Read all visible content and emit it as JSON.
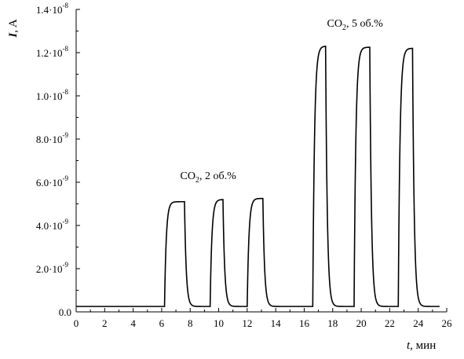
{
  "chart_data": {
    "type": "line",
    "ylabel": {
      "var": "I",
      "unit": ", A"
    },
    "xlabel": {
      "var": "t",
      "unit": ", мин"
    },
    "xlim": [
      0,
      26
    ],
    "ylim": [
      0,
      1.4e-08
    ],
    "x_ticks": [
      0,
      2,
      4,
      6,
      8,
      10,
      12,
      14,
      16,
      18,
      20,
      22,
      24,
      26
    ],
    "x_tick_labels": [
      "0",
      "2",
      "4",
      "6",
      "8",
      "10",
      "12",
      "14",
      "16",
      "18",
      "20",
      "22",
      "24",
      "26"
    ],
    "y_ticks": [
      {
        "value": 0,
        "mantissa": "0.0",
        "exp": ""
      },
      {
        "value": 2e-09,
        "mantissa": "2.0·10",
        "exp": "-9"
      },
      {
        "value": 4e-09,
        "mantissa": "4.0·10",
        "exp": "-9"
      },
      {
        "value": 6e-09,
        "mantissa": "6.0·10",
        "exp": "-9"
      },
      {
        "value": 8e-09,
        "mantissa": "8.0·10",
        "exp": "-9"
      },
      {
        "value": 1e-08,
        "mantissa": "1.0·10",
        "exp": "-8"
      },
      {
        "value": 1.2e-08,
        "mantissa": "1.2·10",
        "exp": "-8"
      },
      {
        "value": 1.4e-08,
        "mantissa": "1.4·10",
        "exp": "-8"
      }
    ],
    "baseline": 2.5e-10,
    "x_start": 0,
    "x_end": 25.5,
    "pulses": [
      {
        "on": 6.2,
        "off": 7.6,
        "plateau": 5.1e-09
      },
      {
        "on": 9.4,
        "off": 10.3,
        "plateau": 5.2e-09
      },
      {
        "on": 12.0,
        "off": 13.1,
        "plateau": 5.25e-09
      },
      {
        "on": 16.6,
        "off": 17.5,
        "plateau": 1.23e-08
      },
      {
        "on": 19.5,
        "off": 20.6,
        "plateau": 1.225e-08
      },
      {
        "on": 22.6,
        "off": 23.6,
        "plateau": 1.22e-08
      }
    ],
    "annotations": [
      {
        "text": "CO",
        "sub": "2",
        "rest": ",  2 об.%",
        "x": 7.3,
        "y": 6.15e-09
      },
      {
        "text": "CO",
        "sub": "2",
        "rest": ", 5 об.%",
        "x": 17.6,
        "y": 1.32e-08
      }
    ],
    "grid": false
  }
}
